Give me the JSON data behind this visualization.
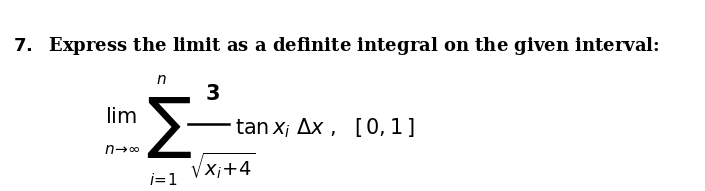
{
  "background_color": "#ffffff",
  "text_color": "#000000",
  "question_number": "7.",
  "question_text": "Express the limit as a definite integral on the given interval:",
  "lim_text": "lim",
  "n_arrow_inf": "n→∞",
  "sigma_upper": "n",
  "sigma_lower": "i=1",
  "numerator": "3",
  "denominator": "\\sqrt{x_i+4}",
  "tail": "\\tan x_i \\; \\Delta x , \\; [\\, 0, 1 \\,]",
  "fig_width": 7.05,
  "fig_height": 1.91,
  "dpi": 100
}
